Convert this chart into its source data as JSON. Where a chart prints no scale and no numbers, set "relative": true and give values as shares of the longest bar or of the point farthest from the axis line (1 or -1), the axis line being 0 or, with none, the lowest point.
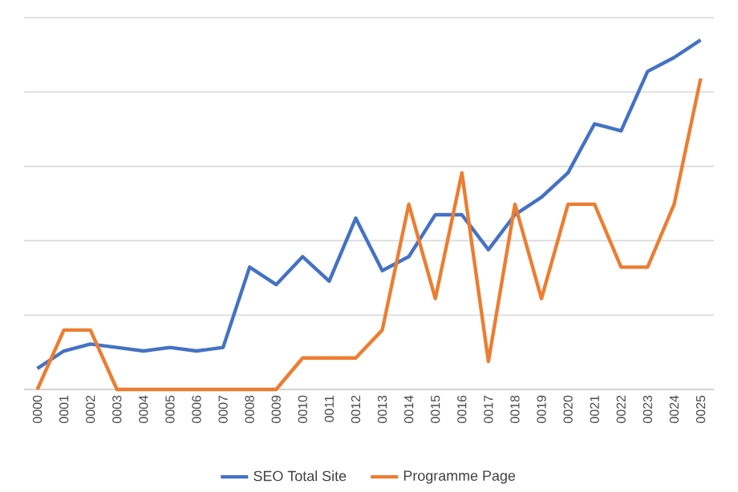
{
  "chart_data": {
    "type": "line",
    "relative": true,
    "grid": "y",
    "legend": "bottom",
    "marker": "none",
    "line_style": "solid",
    "categories": [
      "0000",
      "0001",
      "0002",
      "0003",
      "0004",
      "0005",
      "0006",
      "0007",
      "0008",
      "0009",
      "0010",
      "0011",
      "0012",
      "0013",
      "0014",
      "0015",
      "0016",
      "0017",
      "0018",
      "0019",
      "0020",
      "0021",
      "0022",
      "0023",
      "0024",
      "0025"
    ],
    "series": [
      {
        "name": "SEO Total Site",
        "color": "#4472c4",
        "values": [
          0.06,
          0.11,
          0.13,
          0.12,
          0.11,
          0.12,
          0.11,
          0.12,
          0.35,
          0.3,
          0.38,
          0.31,
          0.49,
          0.34,
          0.38,
          0.5,
          0.5,
          0.4,
          0.5,
          0.55,
          0.62,
          0.76,
          0.74,
          0.91,
          0.95,
          1
        ]
      },
      {
        "name": "Programme Page",
        "color": "#ed7d31",
        "values": [
          0,
          0.17,
          0.17,
          0,
          0,
          0,
          0,
          0,
          0,
          0,
          0.09,
          0.09,
          0.09,
          0.17,
          0.53,
          0.26,
          0.62,
          0.08,
          0.53,
          0.26,
          0.53,
          0.53,
          0.35,
          0.35,
          0.53,
          0.89
        ]
      }
    ]
  }
}
